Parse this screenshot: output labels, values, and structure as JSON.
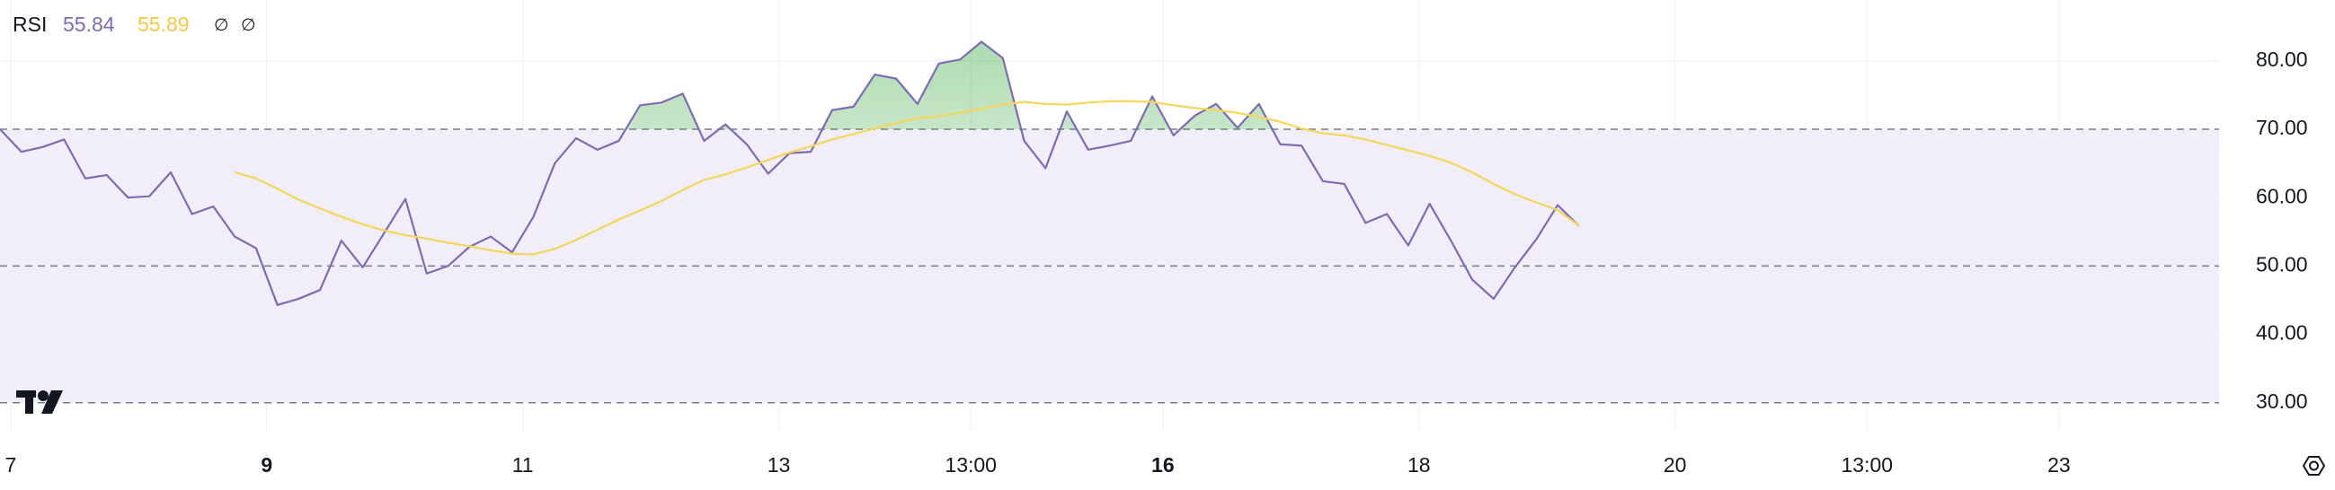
{
  "chart_data": {
    "type": "line",
    "title": "RSI",
    "header_icons": [
      "∅",
      "∅"
    ],
    "x": [
      0,
      1,
      2,
      3,
      4,
      5,
      6,
      7,
      8,
      9,
      10,
      11,
      12,
      13,
      14,
      15,
      16,
      17,
      18,
      19,
      20,
      21,
      22,
      23,
      24,
      25,
      26,
      27,
      28,
      29,
      30,
      31,
      32,
      33,
      34,
      35,
      36,
      37,
      38,
      39,
      40,
      41,
      42,
      43,
      44,
      45,
      46,
      47,
      48,
      49,
      50,
      51,
      52,
      53,
      54,
      55,
      56,
      57,
      58,
      59,
      60,
      61,
      62,
      63,
      64,
      65,
      66,
      67,
      68,
      69,
      70,
      71,
      72,
      73,
      74
    ],
    "series": [
      {
        "color": "#7e6bb4",
        "values": [
          70,
          66.7,
          67.4,
          68.5,
          62.8,
          63.3,
          60,
          60.2,
          63.7,
          57.6,
          58.7,
          54.3,
          52.6,
          44.3,
          45.2,
          46.5,
          53.7,
          49.8,
          54.8,
          59.8,
          48.9,
          50,
          52.8,
          54.3,
          52,
          57.2,
          65,
          68.7,
          67,
          68.3,
          73.5,
          73.9,
          75.2,
          68.3,
          70.7,
          67.8,
          63.5,
          66.5,
          66.7,
          72.8,
          73.3,
          78,
          77.4,
          73.7,
          79.6,
          80.2,
          82.8,
          80.4,
          68.3,
          64.3,
          72.6,
          67,
          67.6,
          68.3,
          74.8,
          69.1,
          72,
          73.7,
          70.2,
          73.7,
          67.8,
          67.6,
          62.4,
          62,
          56.3,
          57.6,
          53,
          59.1,
          53.7,
          48,
          45.2,
          49.8,
          53.9,
          58.9,
          55.84
        ]
      },
      {
        "color": "#f5d55a",
        "values": [
          null,
          null,
          null,
          null,
          null,
          null,
          null,
          null,
          null,
          null,
          null,
          63.7,
          62.8,
          61.3,
          59.7,
          58.4,
          57.2,
          56.1,
          55.2,
          54.5,
          54.0,
          53.4,
          52.9,
          52.3,
          51.8,
          51.7,
          52.5,
          53.8,
          55.3,
          56.8,
          58.1,
          59.5,
          61.1,
          62.6,
          63.4,
          64.4,
          65.5,
          66.6,
          67.5,
          68.5,
          69.3,
          70.1,
          70.9,
          71.6,
          71.9,
          72.4,
          73.0,
          73.6,
          74.0,
          73.7,
          73.6,
          73.9,
          74.1,
          74.1,
          74.0,
          73.5,
          73.1,
          72.8,
          72.4,
          71.8,
          71.1,
          70.1,
          69.4,
          69.1,
          68.5,
          67.7,
          66.9,
          66.1,
          65.1,
          63.7,
          62.0,
          60.5,
          59.3,
          58.2,
          55.89
        ]
      }
    ],
    "bands": [
      70,
      50,
      30
    ],
    "xlim": [
      0,
      104
    ],
    "xticks": [
      {
        "value": 0.5,
        "label": "7"
      },
      {
        "value": 12.5,
        "label": "9"
      },
      {
        "value": 24.5,
        "label": "11"
      },
      {
        "value": 36.5,
        "label": "13"
      },
      {
        "value": 45.5,
        "label": "13:00"
      },
      {
        "value": 54.5,
        "label": "16"
      },
      {
        "value": 66.5,
        "label": "18"
      },
      {
        "value": 78.5,
        "label": "20"
      },
      {
        "value": 87.5,
        "label": "13:00"
      },
      {
        "value": 96.5,
        "label": "23"
      }
    ],
    "ylim": [
      25.9,
      88.9
    ],
    "yticks": [
      {
        "value": 30,
        "label": "30.00"
      },
      {
        "value": 40,
        "label": "40.00"
      },
      {
        "value": 50,
        "label": "50.00"
      },
      {
        "value": 60,
        "label": "60.00"
      },
      {
        "value": 70,
        "label": "70.00"
      },
      {
        "value": 80,
        "label": "80.00"
      }
    ],
    "grid": true
  }
}
